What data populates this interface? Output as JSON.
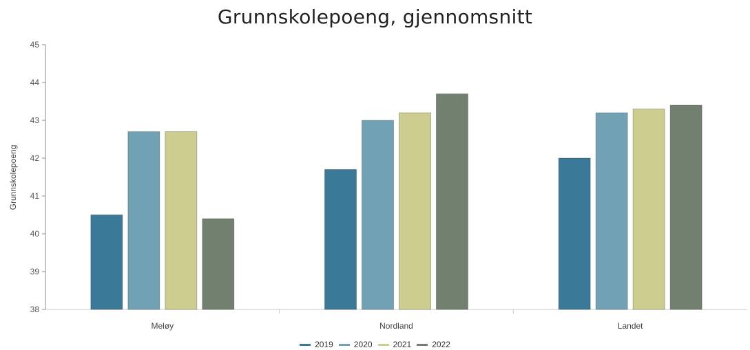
{
  "chart_data": {
    "type": "bar",
    "title": "Grunnskolepoeng, gjennomsnitt",
    "xlabel": "",
    "ylabel": "Grunnskolepoeng",
    "ylim": [
      38,
      45
    ],
    "yticks": [
      38,
      39,
      40,
      41,
      42,
      43,
      44,
      45
    ],
    "categories": [
      "Meløy",
      "Nordland",
      "Landet"
    ],
    "series": [
      {
        "name": "2019",
        "color": "#3a7a98",
        "values": [
          40.5,
          41.7,
          42.0
        ]
      },
      {
        "name": "2020",
        "color": "#70a2b4",
        "values": [
          42.7,
          43.0,
          43.2
        ]
      },
      {
        "name": "2021",
        "color": "#cccd8f",
        "values": [
          42.7,
          43.2,
          43.3
        ]
      },
      {
        "name": "2022",
        "color": "#72806f",
        "values": [
          40.4,
          43.7,
          43.4
        ]
      }
    ],
    "grid": false,
    "legend_position": "bottom"
  }
}
